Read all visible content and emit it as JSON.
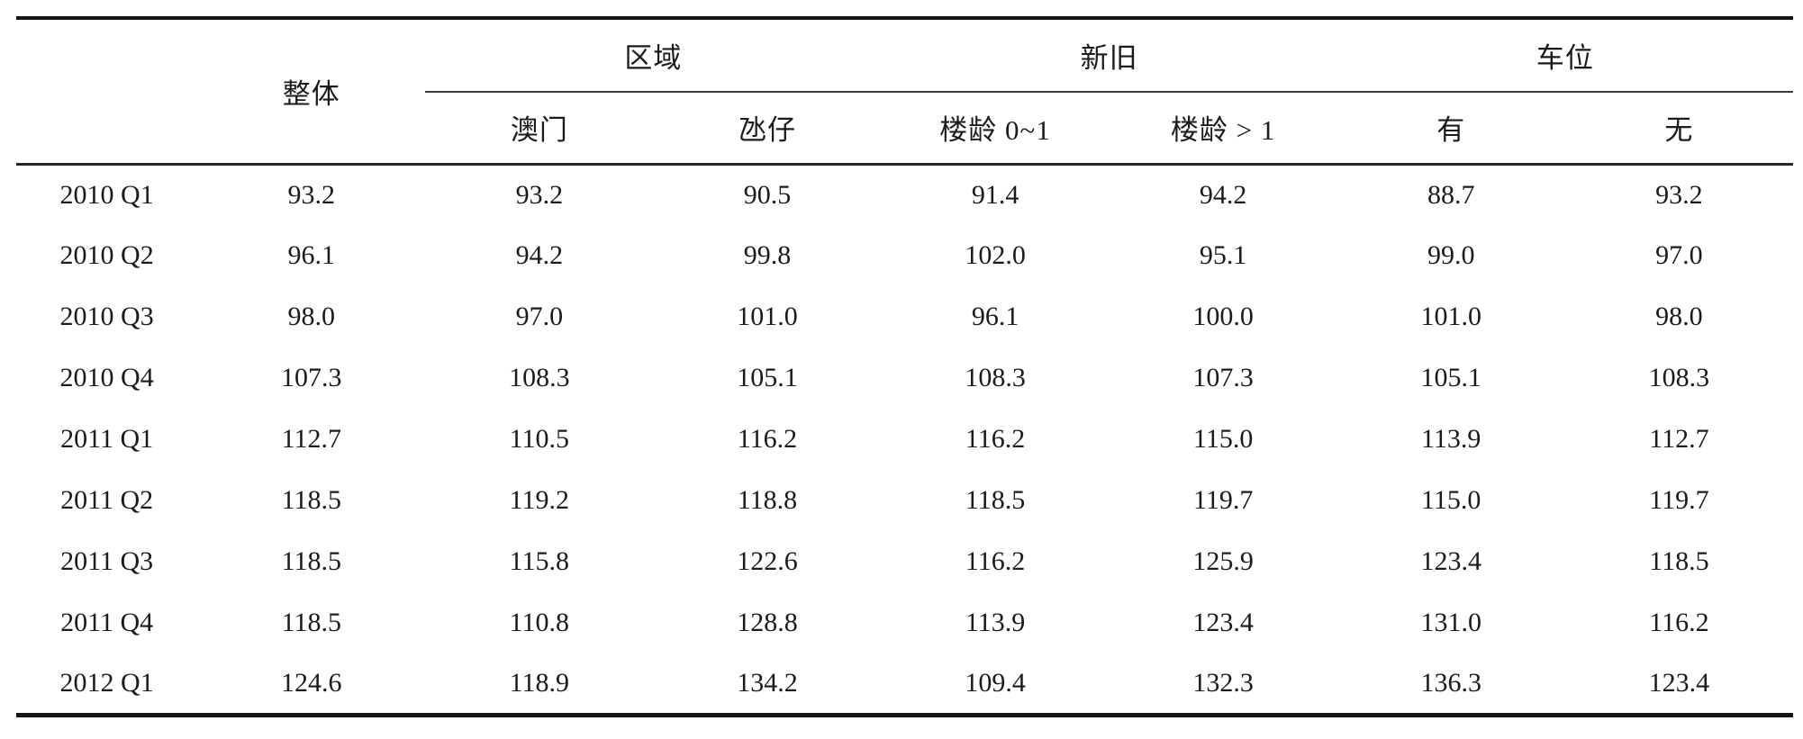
{
  "page": {
    "background": "#ffffff",
    "text_color": "#1b1b1b",
    "rule_color": "#151515"
  },
  "chart_data": {
    "type": "table",
    "title": "",
    "header": {
      "quarter_col": "",
      "overall": "整体",
      "groups": [
        {
          "label": "区域",
          "sub": [
            "澳门",
            "氹仔"
          ]
        },
        {
          "label": "新旧",
          "sub": [
            "楼龄 0~1",
            "楼龄 > 1"
          ]
        },
        {
          "label": "车位",
          "sub": [
            "有",
            "无"
          ]
        }
      ]
    },
    "column_order": [
      "整体",
      "澳门",
      "氹仔",
      "楼龄 0~1",
      "楼龄 > 1",
      "有",
      "无"
    ],
    "rows": [
      {
        "quarter": "2010 Q1",
        "values": [
          "93.2",
          "93.2",
          "90.5",
          "91.4",
          "94.2",
          "88.7",
          "93.2"
        ]
      },
      {
        "quarter": "2010 Q2",
        "values": [
          "96.1",
          "94.2",
          "99.8",
          "102.0",
          "95.1",
          "99.0",
          "97.0"
        ]
      },
      {
        "quarter": "2010 Q3",
        "values": [
          "98.0",
          "97.0",
          "101.0",
          "96.1",
          "100.0",
          "101.0",
          "98.0"
        ]
      },
      {
        "quarter": "2010 Q4",
        "values": [
          "107.3",
          "108.3",
          "105.1",
          "108.3",
          "107.3",
          "105.1",
          "108.3"
        ]
      },
      {
        "quarter": "2011 Q1",
        "values": [
          "112.7",
          "110.5",
          "116.2",
          "116.2",
          "115.0",
          "113.9",
          "112.7"
        ]
      },
      {
        "quarter": "2011 Q2",
        "values": [
          "118.5",
          "119.2",
          "118.8",
          "118.5",
          "119.7",
          "115.0",
          "119.7"
        ]
      },
      {
        "quarter": "2011 Q3",
        "values": [
          "118.5",
          "115.8",
          "122.6",
          "116.2",
          "125.9",
          "123.4",
          "118.5"
        ]
      },
      {
        "quarter": "2011 Q4",
        "values": [
          "118.5",
          "110.8",
          "128.8",
          "113.9",
          "123.4",
          "131.0",
          "116.2"
        ]
      },
      {
        "quarter": "2012 Q1",
        "values": [
          "124.6",
          "118.9",
          "134.2",
          "109.4",
          "132.3",
          "136.3",
          "123.4"
        ]
      }
    ]
  }
}
